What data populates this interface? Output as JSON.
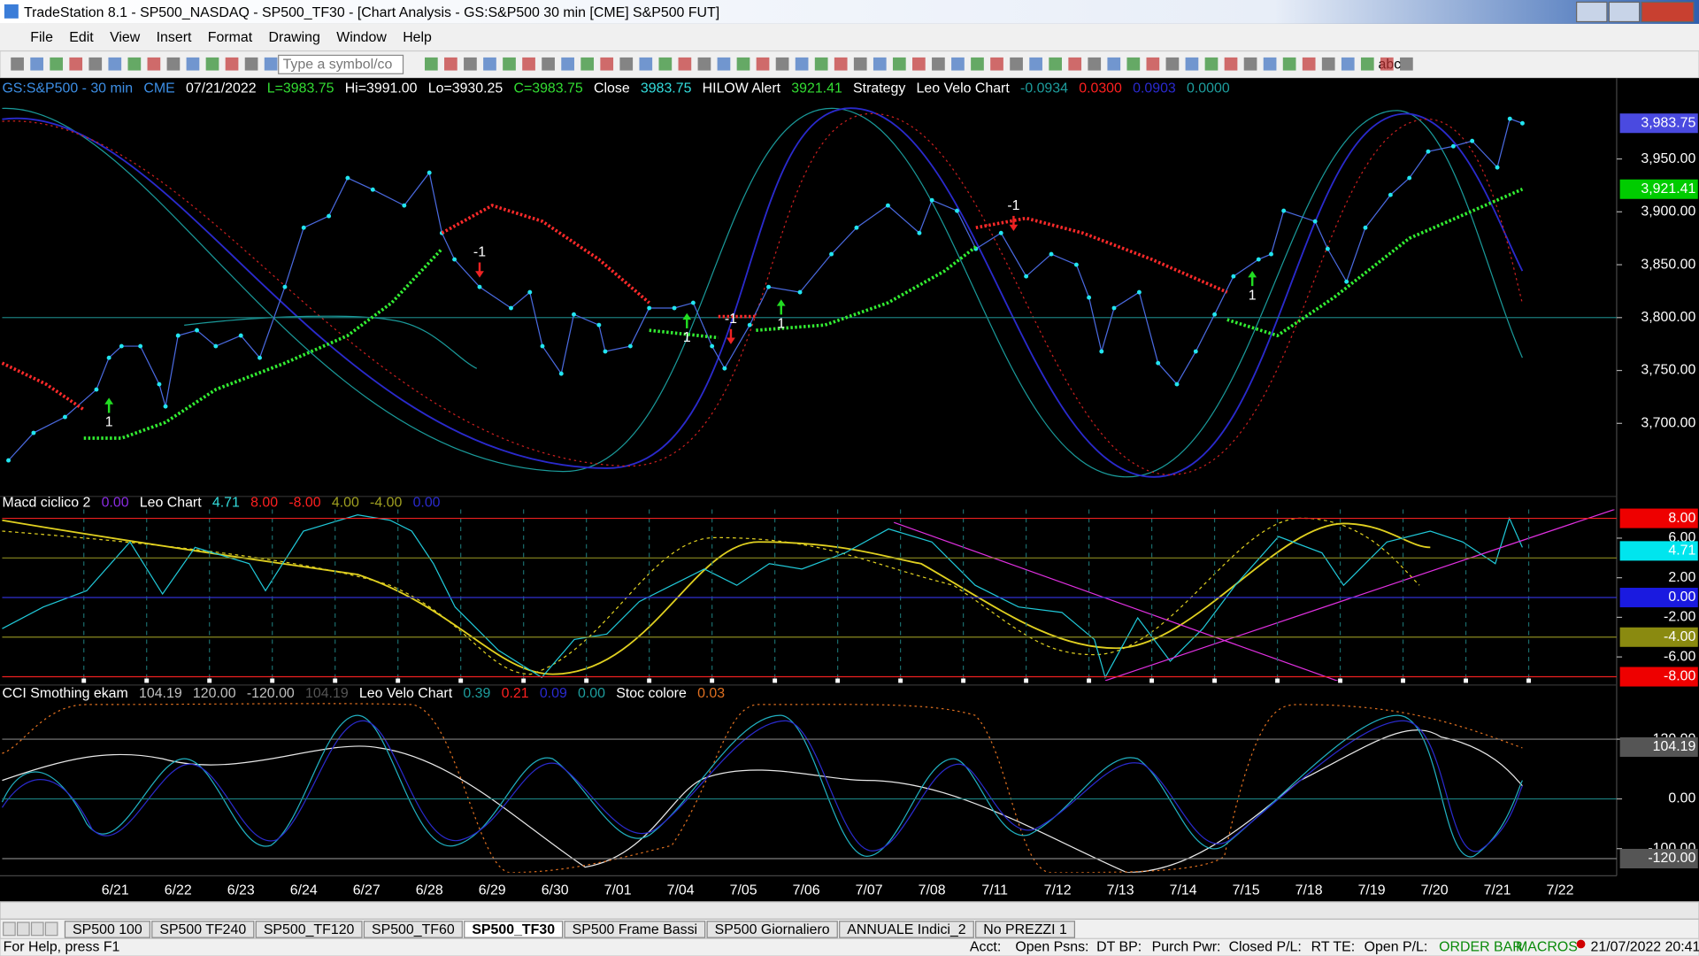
{
  "window": {
    "title": "TradeStation 8.1 - SP500_NASDAQ - SP500_TF30 - [Chart Analysis - GS:S&P500  30 min  [CME] S&P500 FUT]"
  },
  "menu": [
    "File",
    "Edit",
    "View",
    "Insert",
    "Format",
    "Drawing",
    "Window",
    "Help"
  ],
  "toolbar": {
    "symbol_box": "Type a symbol/co",
    "text_tool": "abc"
  },
  "x_axis": {
    "xlim": [
      -1.8,
      23.9
    ],
    "labels": [
      "6/21",
      "6/22",
      "6/23",
      "6/24",
      "6/27",
      "6/28",
      "6/29",
      "6/30",
      "7/01",
      "7/04",
      "7/05",
      "7/06",
      "7/07",
      "7/08",
      "7/11",
      "7/12",
      "7/13",
      "7/14",
      "7/15",
      "7/18",
      "7/19",
      "7/20",
      "7/21",
      "7/22"
    ]
  },
  "price_panel": {
    "header": [
      {
        "text": "GS:S&P500 - 30 min",
        "color": "#3d8fe6"
      },
      {
        "text": "CME",
        "color": "#3d8fe6"
      },
      {
        "text": "07/21/2022",
        "color": "#ffffff"
      },
      {
        "text": "L=3983.75",
        "color": "#33dd33"
      },
      {
        "text": "Hi=3991.00",
        "color": "#ffffff"
      },
      {
        "text": "Lo=3930.25",
        "color": "#ffffff"
      },
      {
        "text": "C=3983.75",
        "color": "#33dd33"
      },
      {
        "text": "Close",
        "color": "#ffffff"
      },
      {
        "text": "3983.75",
        "color": "#33dddd"
      },
      {
        "text": "HILOW Alert",
        "color": "#ffffff"
      },
      {
        "text": "3921.41",
        "color": "#33dd33"
      },
      {
        "text": "Strategy",
        "color": "#ffffff"
      },
      {
        "text": "Leo Velo Chart",
        "color": "#ffffff"
      },
      {
        "text": "-0.0934",
        "color": "#1e9e9e"
      },
      {
        "text": "0.0300",
        "color": "#ff2020"
      },
      {
        "text": "0.0903",
        "color": "#2a2ad0"
      },
      {
        "text": "0.0000",
        "color": "#1e9e9e"
      }
    ],
    "ylim": [
      3634,
      4006
    ],
    "yticks": [
      {
        "value": 3950,
        "label": "3,950.00"
      },
      {
        "value": 3900,
        "label": "3,900.00"
      },
      {
        "value": 3850,
        "label": "3,850.00"
      },
      {
        "value": 3800,
        "label": "3,800.00"
      },
      {
        "value": 3750,
        "label": "3,750.00"
      },
      {
        "value": 3700,
        "label": "3,700.00"
      }
    ],
    "markers": [
      {
        "value": 3983.75,
        "label": "3,983.75",
        "color": "#4a4ae0"
      },
      {
        "value": 3921.41,
        "label": "3,921.41",
        "color": "#00cc00"
      }
    ],
    "hline": {
      "value": 3800,
      "color": "#1a7a7a"
    },
    "price": {
      "color": "#22e5f0",
      "x": [
        -1.7,
        -1.3,
        -0.8,
        -0.3,
        -0.1,
        0.1,
        0.4,
        0.7,
        0.8,
        1.0,
        1.3,
        1.6,
        2.0,
        2.3,
        2.7,
        3.0,
        3.4,
        3.7,
        4.1,
        4.6,
        5.0,
        5.2,
        5.4,
        5.8,
        6.3,
        6.6,
        6.8,
        7.1,
        7.3,
        7.7,
        7.8,
        8.2,
        8.5,
        8.9,
        9.2,
        9.5,
        9.7,
        10.1,
        10.4,
        10.9,
        11.4,
        11.8,
        12.3,
        12.8,
        13.0,
        13.4,
        13.7,
        14.1,
        14.5,
        14.9,
        15.3,
        15.5,
        15.7,
        15.9,
        16.3,
        16.6,
        16.9,
        17.2,
        17.5,
        17.8,
        18.2,
        18.4,
        18.6,
        19.1,
        19.3,
        19.6,
        19.9,
        20.3,
        20.6,
        20.9,
        21.3,
        21.6,
        22.0,
        22.2,
        22.4
      ],
      "values": [
        3665,
        3691,
        3706,
        3732,
        3762,
        3773,
        3773,
        3737,
        3716,
        3783,
        3788,
        3773,
        3783,
        3762,
        3829,
        3885,
        3896,
        3932,
        3921,
        3906,
        3937,
        3880,
        3855,
        3829,
        3809,
        3824,
        3773,
        3747,
        3803,
        3793,
        3768,
        3773,
        3809,
        3809,
        3814,
        3773,
        3752,
        3793,
        3829,
        3824,
        3860,
        3885,
        3906,
        3880,
        3911,
        3901,
        3865,
        3880,
        3839,
        3860,
        3850,
        3819,
        3768,
        3809,
        3824,
        3757,
        3737,
        3768,
        3803,
        3839,
        3855,
        3860,
        3901,
        3891,
        3865,
        3834,
        3885,
        3916,
        3932,
        3957,
        3962,
        3967,
        3942,
        3988,
        3983.75
      ]
    },
    "trend": {
      "x": [
        -1.8,
        -1.1,
        -0.5,
        -0.5,
        0.1,
        0.8,
        1.6,
        2.7,
        3.7,
        4.4,
        5.2,
        5.2,
        6.0,
        6.8,
        7.7,
        8.5,
        8.5,
        9.6,
        9.6,
        10.2,
        10.2,
        11.3,
        12.3,
        13.2,
        13.7,
        13.7,
        14.5,
        15.4,
        16.5,
        17.7,
        17.7,
        18.5,
        19.4,
        20.6,
        22.4
      ],
      "values": [
        3757,
        3737,
        3713,
        3686,
        3686,
        3701,
        3732,
        3757,
        3783,
        3814,
        3865,
        3880,
        3906,
        3891,
        3855,
        3814,
        3788,
        3781,
        3801,
        3801,
        3788,
        3793,
        3814,
        3844,
        3867,
        3885,
        3894,
        3880,
        3855,
        3824,
        3798,
        3783,
        3819,
        3875,
        3921.41
      ],
      "colors": [
        "#ff2a2a",
        "#ff2a2a",
        "#ff2a2a",
        "#33ee33",
        "#33ee33",
        "#33ee33",
        "#33ee33",
        "#33ee33",
        "#33ee33",
        "#33ee33",
        "#33ee33",
        "#ff2a2a",
        "#ff2a2a",
        "#ff2a2a",
        "#ff2a2a",
        "#ff2a2a",
        "#33ee33",
        "#33ee33",
        "#ff2a2a",
        "#ff2a2a",
        "#33ee33",
        "#33ee33",
        "#33ee33",
        "#33ee33",
        "#33ee33",
        "#ff2a2a",
        "#ff2a2a",
        "#ff2a2a",
        "#ff2a2a",
        "#ff2a2a",
        "#33ee33",
        "#33ee33",
        "#33ee33",
        "#33ee33",
        "#33ee33"
      ]
    },
    "signals": [
      {
        "label": "1",
        "x": -0.1,
        "value": 3716,
        "direction": "up"
      },
      {
        "label": "-1",
        "x": 5.8,
        "value": 3846,
        "direction": "down"
      },
      {
        "label": "1",
        "x": 9.1,
        "value": 3796,
        "direction": "up"
      },
      {
        "label": "-1",
        "x": 9.8,
        "value": 3783,
        "direction": "down"
      },
      {
        "label": "1",
        "x": 10.6,
        "value": 3809,
        "direction": "up"
      },
      {
        "label": "-1",
        "x": 14.3,
        "value": 3890,
        "direction": "down"
      },
      {
        "label": "1",
        "x": 18.1,
        "value": 3836,
        "direction": "up"
      }
    ]
  },
  "macd_panel": {
    "header": [
      {
        "text": "Macd ciclico 2",
        "color": "#ffffff"
      },
      {
        "text": "0.00",
        "color": "#8a2be2"
      },
      {
        "text": "Leo Chart",
        "color": "#ffffff"
      },
      {
        "text": "4.71",
        "color": "#33dddd"
      },
      {
        "text": "8.00",
        "color": "#ff2020"
      },
      {
        "text": "-8.00",
        "color": "#ff2020"
      },
      {
        "text": "4.00",
        "color": "#a0a020"
      },
      {
        "text": "-4.00",
        "color": "#a0a020"
      },
      {
        "text": "0.00",
        "color": "#2a2ad0"
      }
    ],
    "ylim": [
      -8.4,
      8.9
    ],
    "yticks": [
      {
        "value": 6,
        "label": "6.00"
      },
      {
        "value": 2,
        "label": "2.00"
      },
      {
        "value": -2,
        "label": "-2.00"
      },
      {
        "value": -6,
        "label": "-6.00"
      }
    ],
    "levels": [
      {
        "value": 8,
        "color": "#ee2020"
      },
      {
        "value": 4,
        "color": "#8a8a20"
      },
      {
        "value": 0,
        "color": "#3030d0"
      },
      {
        "value": -4,
        "color": "#8a8a20"
      },
      {
        "value": -8,
        "color": "#ee2020"
      }
    ],
    "markers": [
      {
        "value": 8,
        "label": "8.00",
        "color": "#ee0000"
      },
      {
        "value": 4.71,
        "label": "4.71",
        "color": "#00e5ee"
      },
      {
        "value": 0,
        "label": "0.00",
        "color": "#1a1ae0"
      },
      {
        "value": -4,
        "label": "-4.00",
        "color": "#8a8a10"
      },
      {
        "value": -8,
        "label": "-8.00",
        "color": "#ee0000"
      }
    ]
  },
  "cci_panel": {
    "header": [
      {
        "text": "CCI Smothing ekam",
        "color": "#ffffff"
      },
      {
        "text": "104.19",
        "color": "#c0c0c0"
      },
      {
        "text": "120.00",
        "color": "#c0c0c0"
      },
      {
        "text": "-120.00",
        "color": "#c0c0c0"
      },
      {
        "text": "104.19",
        "color": "#555555"
      },
      {
        "text": "Leo Velo Chart",
        "color": "#ffffff"
      },
      {
        "text": "0.39",
        "color": "#1e9e9e"
      },
      {
        "text": "0.21",
        "color": "#ff2020"
      },
      {
        "text": "0.09",
        "color": "#2a2ad0"
      },
      {
        "text": "0.00",
        "color": "#1e9e9e"
      },
      {
        "text": "Stoc colore",
        "color": "#ffffff"
      },
      {
        "text": "0.03",
        "color": "#e07020"
      }
    ],
    "ylim": [
      -148,
      194
    ],
    "yticks": [
      {
        "value": 120,
        "label": "120.00"
      },
      {
        "value": 0,
        "label": "0.00"
      },
      {
        "value": -100,
        "label": "-100.00"
      }
    ],
    "levels": [
      {
        "value": 120,
        "color": "#808080"
      },
      {
        "value": 0,
        "color": "#1a7a7a"
      },
      {
        "value": -120,
        "color": "#808080"
      }
    ],
    "markers": [
      {
        "value": 104.19,
        "label": "104.19",
        "color": "#555555"
      },
      {
        "value": -120,
        "label": "-120.00",
        "color": "#555555"
      }
    ]
  },
  "tabs": {
    "items": [
      "SP500 100",
      "SP500 TF240",
      "SP500_TF120",
      "SP500_TF60",
      "SP500_TF30",
      "SP500 Frame Bassi",
      "SP500 Giornaliero",
      "ANNUALE Indici_2",
      "No PREZZI 1"
    ],
    "active": "SP500_TF30"
  },
  "status_bar": {
    "help": "For Help, press F1",
    "fields": [
      "Acct:",
      "Open Psns:",
      "DT BP:",
      "Purch Pwr:",
      "Closed P/L:",
      "RT TE:",
      "Open P/L:",
      "ORDER BAR",
      "MACROS"
    ],
    "datetime": "21/07/2022 20:41"
  }
}
